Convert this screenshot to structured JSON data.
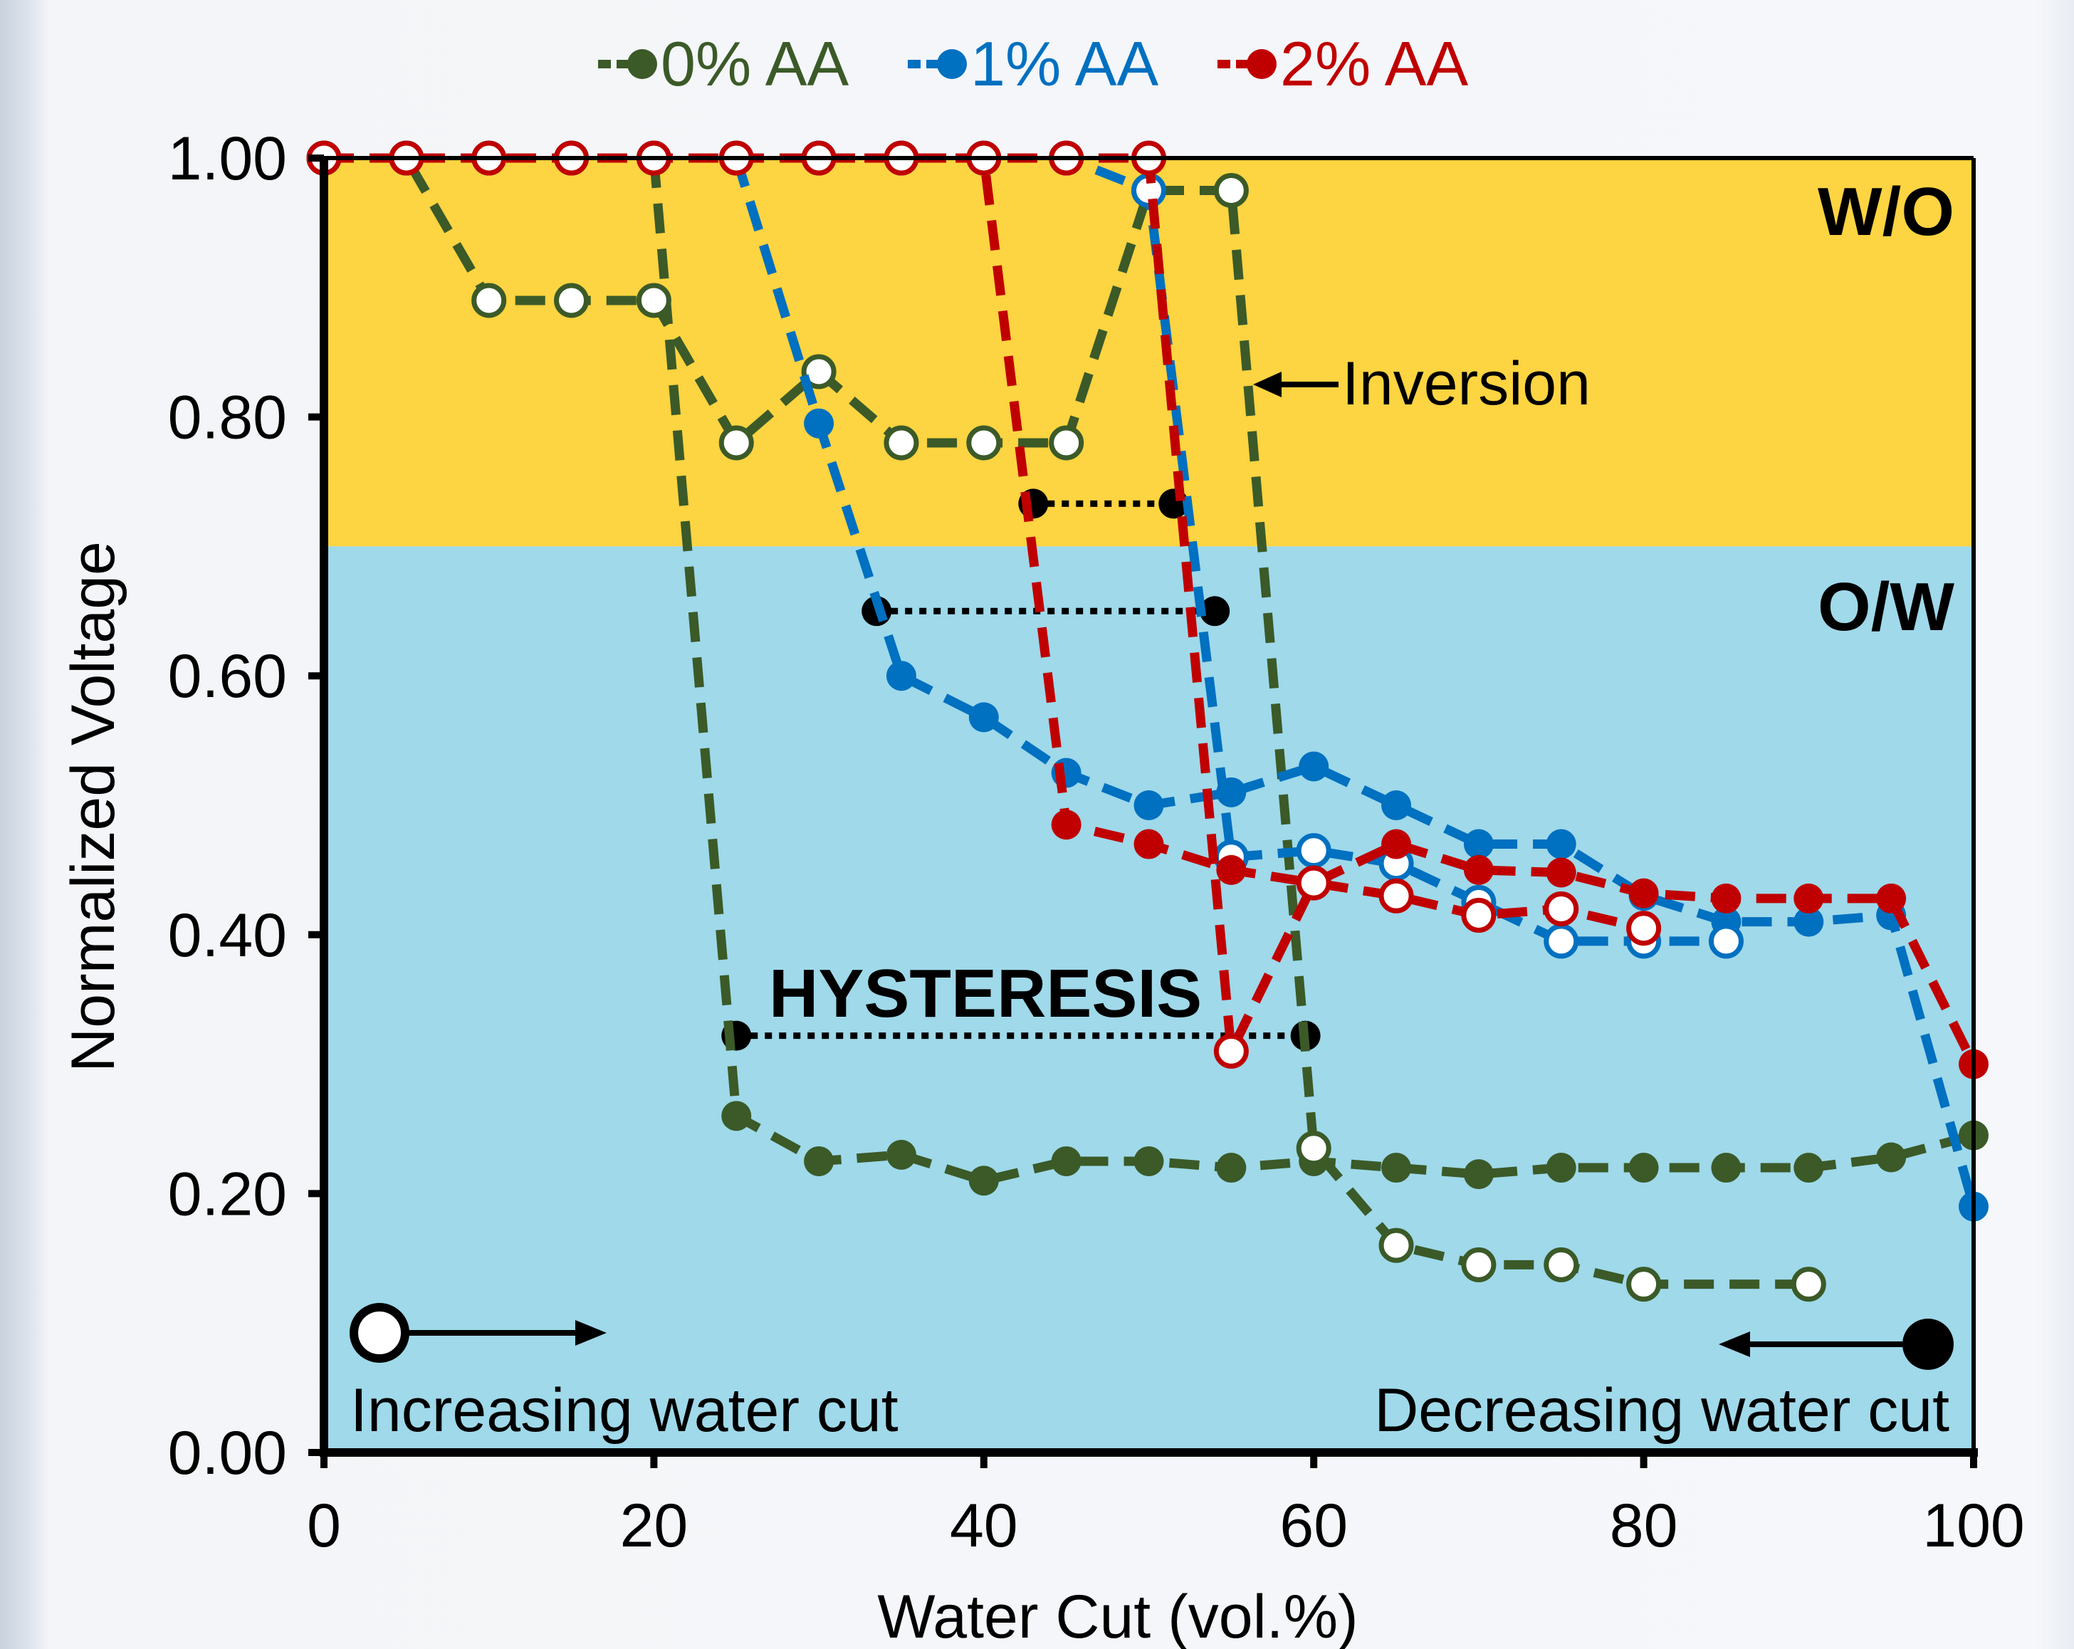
{
  "chart_data": {
    "type": "line",
    "xlabel": "Water Cut (vol.%)",
    "ylabel": "Normalized Voltage",
    "xlim": [
      0,
      100
    ],
    "ylim": [
      0,
      1
    ],
    "xticks": [
      "0",
      "20",
      "40",
      "60",
      "80",
      "100"
    ],
    "xtick_values": [
      0,
      20,
      40,
      60,
      80,
      100
    ],
    "yticks": [
      "0.00",
      "0.20",
      "0.40",
      "0.60",
      "0.80",
      "1.00"
    ],
    "ytick_values": [
      0,
      0.2,
      0.4,
      0.6,
      0.8,
      1.0
    ],
    "regions": [
      {
        "label": "W/O",
        "y_from": 0.7,
        "y_to": 1.0,
        "color": "#fdd441"
      },
      {
        "label": "O/W",
        "y_from": 0.0,
        "y_to": 0.7,
        "color": "#9fd9ea"
      }
    ],
    "legend": {
      "placement": "top"
    },
    "series": [
      {
        "name": "0% AA",
        "color": "#3b5a28",
        "increasing": {
          "x": [
            0,
            5,
            10,
            15,
            20,
            25,
            30,
            35,
            40,
            45,
            50,
            55,
            60,
            65,
            70,
            75,
            80,
            90
          ],
          "y": [
            1.0,
            1.0,
            0.89,
            0.89,
            0.89,
            0.78,
            0.835,
            0.78,
            0.78,
            0.78,
            0.975,
            0.975,
            0.235,
            0.16,
            0.145,
            0.145,
            0.13,
            0.13
          ]
        },
        "decreasing": {
          "x": [
            20,
            25,
            30,
            35,
            40,
            45,
            50,
            55,
            60,
            65,
            70,
            75,
            80,
            85,
            90,
            95,
            100
          ],
          "y": [
            1.0,
            0.26,
            0.225,
            0.23,
            0.21,
            0.225,
            0.225,
            0.22,
            0.225,
            0.22,
            0.215,
            0.22,
            0.22,
            0.22,
            0.22,
            0.228,
            0.245
          ]
        }
      },
      {
        "name": "1% AA",
        "color": "#0070c0",
        "increasing": {
          "x": [
            0,
            5,
            10,
            15,
            20,
            25,
            30,
            35,
            40,
            45,
            50,
            55,
            60,
            65,
            70,
            75,
            80,
            85
          ],
          "y": [
            1.0,
            1.0,
            1.0,
            1.0,
            1.0,
            1.0,
            1.0,
            1.0,
            1.0,
            1.0,
            0.975,
            0.46,
            0.465,
            0.455,
            0.425,
            0.395,
            0.395,
            0.395
          ]
        },
        "decreasing": {
          "x": [
            25,
            30,
            35,
            40,
            45,
            50,
            55,
            60,
            65,
            70,
            75,
            80,
            85,
            90,
            95,
            100
          ],
          "y": [
            1.0,
            0.795,
            0.6,
            0.568,
            0.525,
            0.5,
            0.51,
            0.53,
            0.5,
            0.47,
            0.47,
            0.43,
            0.41,
            0.41,
            0.415,
            0.19
          ]
        }
      },
      {
        "name": "2% AA",
        "color": "#c00000",
        "increasing": {
          "x": [
            0,
            5,
            10,
            15,
            20,
            25,
            30,
            35,
            40,
            45,
            50,
            55,
            60,
            65,
            70,
            75,
            80
          ],
          "y": [
            1.0,
            1.0,
            1.0,
            1.0,
            1.0,
            1.0,
            1.0,
            1.0,
            1.0,
            1.0,
            1.0,
            0.31,
            0.44,
            0.43,
            0.415,
            0.42,
            0.405
          ]
        },
        "decreasing": {
          "x": [
            30,
            35,
            40,
            45,
            50,
            55,
            60,
            65,
            70,
            75,
            80,
            85,
            90,
            95,
            100
          ],
          "y": [
            1.0,
            1.0,
            1.0,
            0.485,
            0.47,
            0.45,
            0.44,
            0.47,
            0.45,
            0.448,
            0.432,
            0.428,
            0.428,
            0.428,
            0.3
          ]
        }
      }
    ],
    "hysteresis_lines": [
      {
        "x1": 43,
        "x2": 51.5,
        "y": 0.733
      },
      {
        "x1": 33.5,
        "x2": 54,
        "y": 0.65
      },
      {
        "x1": 25,
        "x2": 59.5,
        "y": 0.322
      }
    ],
    "annotations": {
      "wo": "W/O",
      "ow": "O/W",
      "inversion": "Inversion",
      "hysteresis": "HYSTERESIS",
      "increasing": "Increasing water cut",
      "decreasing": "Decreasing water cut"
    }
  }
}
